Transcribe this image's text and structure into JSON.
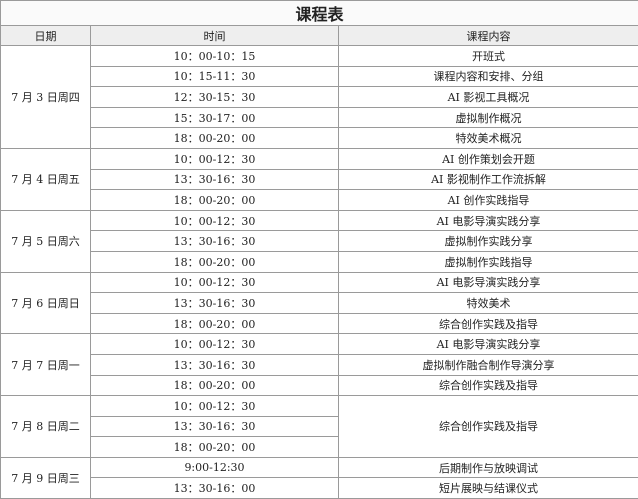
{
  "table": {
    "title": "课程表",
    "headers": [
      "日期",
      "时间",
      "课程内容"
    ],
    "groups": [
      {
        "date": "7 月 3 日周四",
        "times": [
          "10：00-10：15",
          "10：15-11：30",
          "12：30-15：30",
          "15：30-17：00",
          "18：00-20：00"
        ],
        "contents": [
          "开班式",
          "课程内容和安排、分组",
          "AI 影视工具概况",
          "虚拟制作概况",
          "特效美术概况"
        ]
      },
      {
        "date": "7 月 4 日周五",
        "times": [
          "10：00-12：30",
          "13：30-16：30",
          "18：00-20：00"
        ],
        "contents": [
          "AI 创作策划会开题",
          "AI 影视制作工作流拆解",
          "AI 创作实践指导"
        ]
      },
      {
        "date": "7 月 5 日周六",
        "times": [
          "10：00-12：30",
          "13：30-16：30",
          "18：00-20：00"
        ],
        "contents": [
          "AI 电影导演实践分享",
          "虚拟制作实践分享",
          "虚拟制作实践指导"
        ]
      },
      {
        "date": "7 月 6 日周日",
        "times": [
          "10：00-12：30",
          "13：30-16：30",
          "18：00-20：00"
        ],
        "contents": [
          "AI 电影导演实践分享",
          "特效美术",
          "综合创作实践及指导"
        ]
      },
      {
        "date": "7 月 7 日周一",
        "times": [
          "10：00-12：30",
          "13：30-16：30",
          "18：00-20：00"
        ],
        "contents": [
          "AI 电影导演实践分享",
          "虚拟制作融合制作导演分享",
          "综合创作实践及指导"
        ]
      },
      {
        "date": "7 月 8 日周二",
        "times": [
          "10：00-12：30",
          "13：30-16：30",
          "18：00-20：00"
        ],
        "contents": [
          "综合创作实践及指导"
        ]
      },
      {
        "date": "7 月 9 日周三",
        "times": [
          "9:00-12:30",
          "13：30-16：00"
        ],
        "contents": [
          "后期制作与放映调试",
          "短片展映与结课仪式"
        ]
      }
    ]
  }
}
